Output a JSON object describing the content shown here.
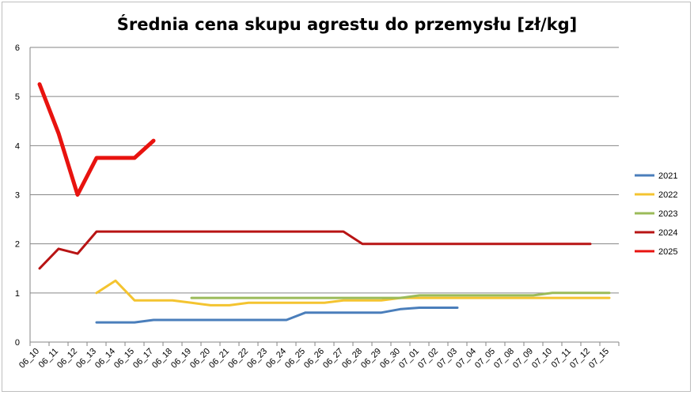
{
  "chart_data": {
    "type": "line",
    "title": "Średnia cena skupu agrestu do przemysłu [zł/kg]",
    "xlabel": "",
    "ylabel": "",
    "ylim": [
      0,
      6
    ],
    "yticks": [
      "0",
      "1",
      "2",
      "3",
      "4",
      "5",
      "6"
    ],
    "grid": true,
    "legend_position": "right",
    "categories": [
      "06_10",
      "06_11",
      "06_12",
      "06_13",
      "06_14",
      "06_15",
      "06_17",
      "06_18",
      "06_19",
      "06_20",
      "06_21",
      "06_22",
      "06_23",
      "06_24",
      "06_25",
      "06_26",
      "06_27",
      "06_28",
      "06_29",
      "06_30",
      "07_01",
      "07_02",
      "07_03",
      "07_04",
      "07_05",
      "07_08",
      "07_09",
      "07_10",
      "07_11",
      "07_12",
      "07_15"
    ],
    "series": [
      {
        "name": "2021",
        "color": "#4a7ebb",
        "width": 3,
        "values": [
          null,
          null,
          null,
          0.4,
          0.4,
          0.4,
          0.45,
          0.45,
          0.45,
          0.45,
          0.45,
          0.45,
          0.45,
          0.45,
          0.6,
          0.6,
          0.6,
          0.6,
          0.6,
          0.67,
          0.7,
          0.7,
          0.7,
          null,
          null,
          null,
          null,
          null,
          null,
          null,
          null
        ]
      },
      {
        "name": "2022",
        "color": "#f4c430",
        "width": 3,
        "values": [
          null,
          null,
          null,
          1.0,
          1.25,
          0.85,
          0.85,
          0.85,
          0.8,
          0.75,
          0.75,
          0.8,
          0.8,
          0.8,
          0.8,
          0.8,
          0.85,
          0.85,
          0.85,
          0.9,
          0.9,
          0.9,
          0.9,
          0.9,
          0.9,
          0.9,
          0.9,
          0.9,
          0.9,
          0.9,
          0.9
        ]
      },
      {
        "name": "2023",
        "color": "#9bbb59",
        "width": 3,
        "values": [
          null,
          null,
          null,
          null,
          null,
          null,
          null,
          null,
          0.9,
          0.9,
          0.9,
          0.9,
          0.9,
          0.9,
          0.9,
          0.9,
          0.9,
          0.9,
          0.9,
          0.9,
          0.95,
          0.95,
          0.95,
          0.95,
          0.95,
          0.95,
          0.95,
          1.0,
          1.0,
          1.0,
          1.0
        ]
      },
      {
        "name": "2024",
        "color": "#b81414",
        "width": 3,
        "values": [
          1.5,
          1.9,
          1.8,
          2.25,
          2.25,
          2.25,
          2.25,
          2.25,
          2.25,
          2.25,
          2.25,
          2.25,
          2.25,
          2.25,
          2.25,
          2.25,
          2.25,
          2.0,
          2.0,
          2.0,
          2.0,
          2.0,
          2.0,
          2.0,
          2.0,
          2.0,
          2.0,
          2.0,
          2.0,
          2.0,
          null
        ]
      },
      {
        "name": "2025",
        "color": "#e8130f",
        "width": 5,
        "values": [
          5.25,
          4.25,
          3.0,
          3.75,
          3.75,
          3.75,
          4.1,
          null,
          null,
          null,
          null,
          null,
          null,
          null,
          null,
          null,
          null,
          null,
          null,
          null,
          null,
          null,
          null,
          null,
          null,
          null,
          null,
          null,
          null,
          null,
          null
        ]
      }
    ]
  }
}
